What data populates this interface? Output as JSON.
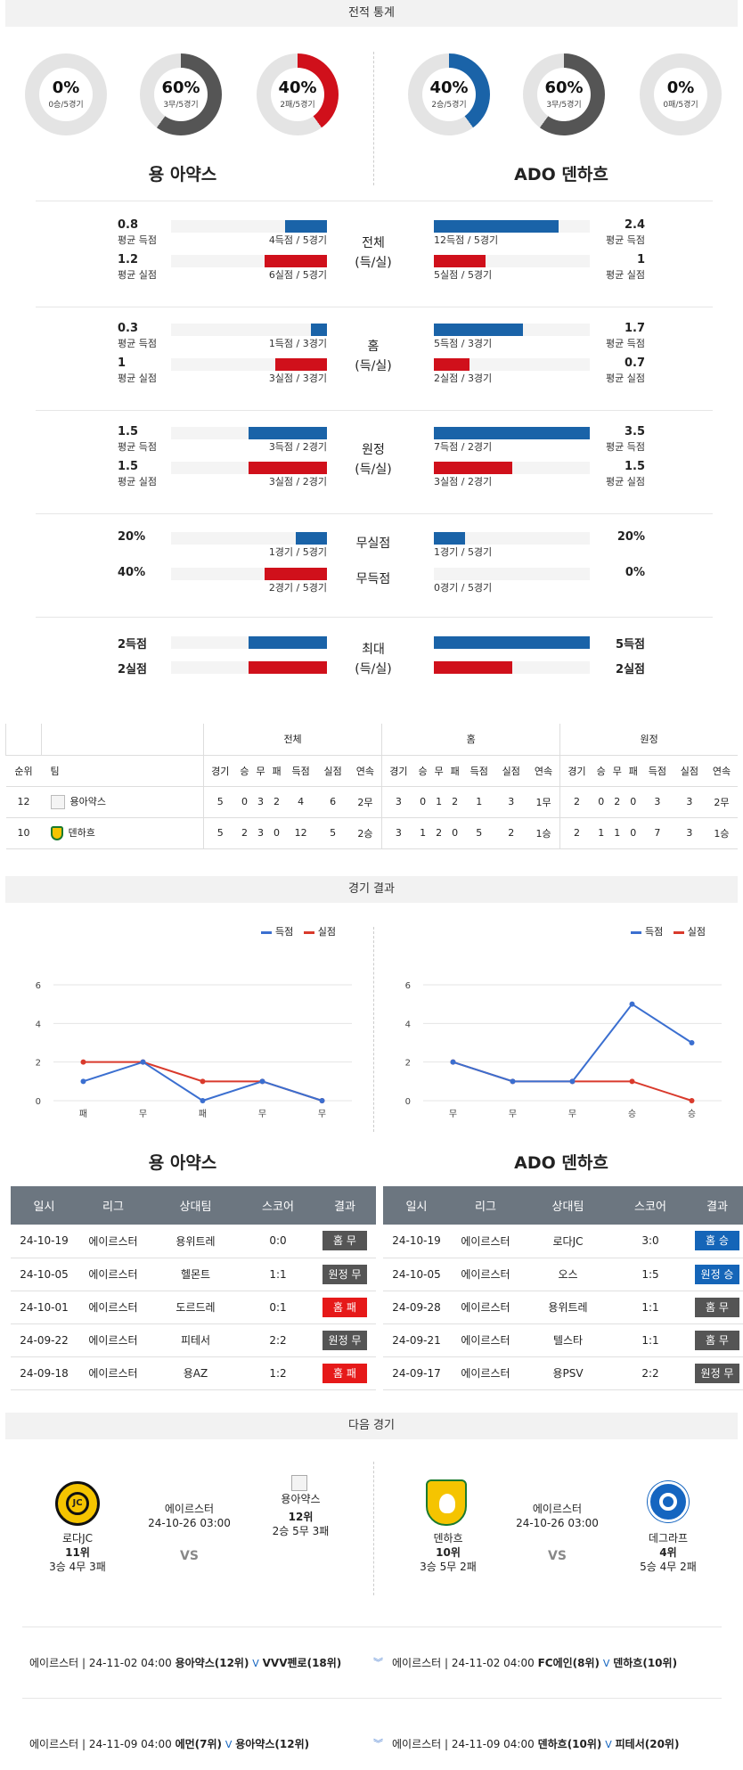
{
  "sections": {
    "stats": "전적 통계",
    "results": "경기 결과",
    "next": "다음 경기"
  },
  "home": {
    "name": "용 아약스",
    "donuts": [
      {
        "pct": "0%",
        "sub": "0승/5경기",
        "value": 0,
        "color": "#d0101b"
      },
      {
        "pct": "60%",
        "sub": "3무/5경기",
        "value": 60,
        "color": "#555555"
      },
      {
        "pct": "40%",
        "sub": "2패/5경기",
        "value": 40,
        "color": "#d0101b"
      }
    ]
  },
  "away": {
    "name": "ADO 덴하흐",
    "donuts": [
      {
        "pct": "40%",
        "sub": "2승/5경기",
        "value": 40,
        "color": "#1a63a8"
      },
      {
        "pct": "60%",
        "sub": "3무/5경기",
        "value": 60,
        "color": "#555555"
      },
      {
        "pct": "0%",
        "sub": "0패/5경기",
        "value": 0,
        "color": "#d0101b"
      }
    ]
  },
  "stats": [
    {
      "mid": [
        "전체",
        "(득/실)"
      ],
      "rows": [
        {
          "lv": "0.8",
          "ll": "평균 득점",
          "lsub": "4득점 / 5경기",
          "lfrac": 0.27,
          "rv": "2.4",
          "rl": "평균 득점",
          "rsub": "12득점 / 5경기",
          "rfrac": 0.8,
          "type": "blue"
        },
        {
          "lv": "1.2",
          "ll": "평균 실점",
          "lsub": "6실점 / 5경기",
          "lfrac": 0.4,
          "rv": "1",
          "rl": "평균 실점",
          "rsub": "5실점 / 5경기",
          "rfrac": 0.33,
          "type": "red"
        }
      ]
    },
    {
      "mid": [
        "홈",
        "(득/실)"
      ],
      "rows": [
        {
          "lv": "0.3",
          "ll": "평균 득점",
          "lsub": "1득점 / 3경기",
          "lfrac": 0.1,
          "rv": "1.7",
          "rl": "평균 득점",
          "rsub": "5득점 / 3경기",
          "rfrac": 0.57,
          "type": "blue"
        },
        {
          "lv": "1",
          "ll": "평균 실점",
          "lsub": "3실점 / 3경기",
          "lfrac": 0.33,
          "rv": "0.7",
          "rl": "평균 실점",
          "rsub": "2실점 / 3경기",
          "rfrac": 0.23,
          "type": "red"
        }
      ]
    },
    {
      "mid": [
        "원정",
        "(득/실)"
      ],
      "rows": [
        {
          "lv": "1.5",
          "ll": "평균 득점",
          "lsub": "3득점 / 2경기",
          "lfrac": 0.5,
          "rv": "3.5",
          "rl": "평균 득점",
          "rsub": "7득점 / 2경기",
          "rfrac": 1.0,
          "type": "blue"
        },
        {
          "lv": "1.5",
          "ll": "평균 실점",
          "lsub": "3실점 / 2경기",
          "lfrac": 0.5,
          "rv": "1.5",
          "rl": "평균 실점",
          "rsub": "3실점 / 2경기",
          "rfrac": 0.5,
          "type": "red"
        }
      ]
    }
  ],
  "shutout": {
    "rows": [
      {
        "mid": "무실점",
        "lv": "20%",
        "lsub": "1경기 / 5경기",
        "lfrac": 0.2,
        "rv": "20%",
        "rsub": "1경기 / 5경기",
        "rfrac": 0.2,
        "type": "blue"
      },
      {
        "mid": "무득점",
        "lv": "40%",
        "lsub": "2경기 / 5경기",
        "lfrac": 0.4,
        "rv": "0%",
        "rsub": "0경기 / 5경기",
        "rfrac": 0.0,
        "type": "red"
      }
    ]
  },
  "max": {
    "mid": [
      "최대",
      "(득/실)"
    ],
    "rows": [
      {
        "lv": "2득점",
        "lfrac": 0.5,
        "rv": "5득점",
        "rfrac": 1.0,
        "type": "blue"
      },
      {
        "lv": "2실점",
        "lfrac": 0.5,
        "rv": "2실점",
        "rfrac": 0.5,
        "type": "red"
      }
    ]
  },
  "standings": {
    "groups": [
      "전체",
      "홈",
      "원정"
    ],
    "head": [
      "순위",
      "팀"
    ],
    "cols": [
      "경기",
      "승",
      "무",
      "패",
      "득점",
      "실점",
      "연속"
    ],
    "rows": [
      {
        "rank": "12",
        "team": "용아약스",
        "vals": [
          "5",
          "0",
          "3",
          "2",
          "4",
          "6",
          "2무",
          "3",
          "0",
          "1",
          "2",
          "1",
          "3",
          "1무",
          "2",
          "0",
          "2",
          "0",
          "3",
          "3",
          "2무"
        ]
      },
      {
        "rank": "10",
        "team": "덴하흐",
        "vals": [
          "5",
          "2",
          "3",
          "0",
          "12",
          "5",
          "2승",
          "3",
          "1",
          "2",
          "0",
          "5",
          "2",
          "1승",
          "2",
          "1",
          "1",
          "0",
          "7",
          "3",
          "1승"
        ]
      }
    ]
  },
  "chart_data": [
    {
      "type": "line",
      "categories": [
        "패",
        "무",
        "패",
        "무",
        "무"
      ],
      "series": [
        {
          "name": "득점",
          "values": [
            1,
            2,
            0,
            1,
            0
          ],
          "color": "#3b6fd0"
        },
        {
          "name": "실점",
          "values": [
            2,
            2,
            1,
            1,
            0
          ],
          "color": "#d93a2c"
        }
      ],
      "ylim": [
        0,
        6
      ],
      "yticks": [
        "0",
        "2",
        "4",
        "6"
      ]
    },
    {
      "type": "line",
      "categories": [
        "무",
        "무",
        "무",
        "승",
        "승"
      ],
      "series": [
        {
          "name": "득점",
          "values": [
            2,
            1,
            1,
            5,
            3
          ],
          "color": "#3b6fd0"
        },
        {
          "name": "실점",
          "values": [
            2,
            1,
            1,
            1,
            0
          ],
          "color": "#d93a2c"
        }
      ],
      "ylim": [
        0,
        6
      ],
      "yticks": [
        "0",
        "2",
        "4",
        "6"
      ]
    }
  ],
  "results": {
    "head": [
      "일시",
      "리그",
      "상대팀",
      "스코어",
      "결과"
    ],
    "home": [
      {
        "date": "24-10-19",
        "league": "에이르스터",
        "opp": "용위트레",
        "score": "0:0",
        "res": "홈 무",
        "cls": "b-gray"
      },
      {
        "date": "24-10-05",
        "league": "에이르스터",
        "opp": "헬몬트",
        "score": "1:1",
        "res": "원정 무",
        "cls": "b-gray"
      },
      {
        "date": "24-10-01",
        "league": "에이르스터",
        "opp": "도르드레",
        "score": "0:1",
        "res": "홈 패",
        "cls": "b-red"
      },
      {
        "date": "24-09-22",
        "league": "에이르스터",
        "opp": "피테서",
        "score": "2:2",
        "res": "원정 무",
        "cls": "b-gray"
      },
      {
        "date": "24-09-18",
        "league": "에이르스터",
        "opp": "용AZ",
        "score": "1:2",
        "res": "홈 패",
        "cls": "b-red"
      }
    ],
    "away": [
      {
        "date": "24-10-19",
        "league": "에이르스터",
        "opp": "로다JC",
        "score": "3:0",
        "res": "홈 승",
        "cls": "b-blue"
      },
      {
        "date": "24-10-05",
        "league": "에이르스터",
        "opp": "오스",
        "score": "1:5",
        "res": "원정 승",
        "cls": "b-blue"
      },
      {
        "date": "24-09-28",
        "league": "에이르스터",
        "opp": "용위트레",
        "score": "1:1",
        "res": "홈 무",
        "cls": "b-gray"
      },
      {
        "date": "24-09-21",
        "league": "에이르스터",
        "opp": "텔스타",
        "score": "1:1",
        "res": "홈 무",
        "cls": "b-gray"
      },
      {
        "date": "24-09-17",
        "league": "에이르스터",
        "opp": "용PSV",
        "score": "2:2",
        "res": "원정 무",
        "cls": "b-gray"
      }
    ]
  },
  "next": {
    "vs": "VS",
    "left": {
      "home": "로다JC",
      "home_rank": "11위",
      "home_rec": "3승 4무 3패",
      "league": "에이르스터",
      "time": "24-10-26 03:00",
      "away": "용아약스",
      "away_rank": "12위",
      "away_rec": "2승 5무 3패"
    },
    "right": {
      "home": "덴하흐",
      "home_rank": "10위",
      "home_rec": "3승 5무 2패",
      "league": "에이르스터",
      "time": "24-10-26 03:00",
      "away": "데그라프",
      "away_rank": "4위",
      "away_rec": "5승 4무 2패"
    }
  },
  "upcoming": [
    {
      "l_pre": "에이르스터 | 24-11-02 04:00",
      "l_t1": "용아약스(12위)",
      "l_t2": "VVV펜로(18위)",
      "r_pre": "에이르스터 | 24-11-02 04:00",
      "r_t1": "FC에인(8위)",
      "r_t2": "덴하흐(10위)"
    },
    {
      "l_pre": "에이르스터 | 24-11-09 04:00",
      "l_t1": "에먼(7위)",
      "l_t2": "용아약스(12위)",
      "r_pre": "에이르스터 | 24-11-09 04:00",
      "r_t1": "덴하흐(10위)",
      "r_t2": "피테서(20위)"
    }
  ]
}
